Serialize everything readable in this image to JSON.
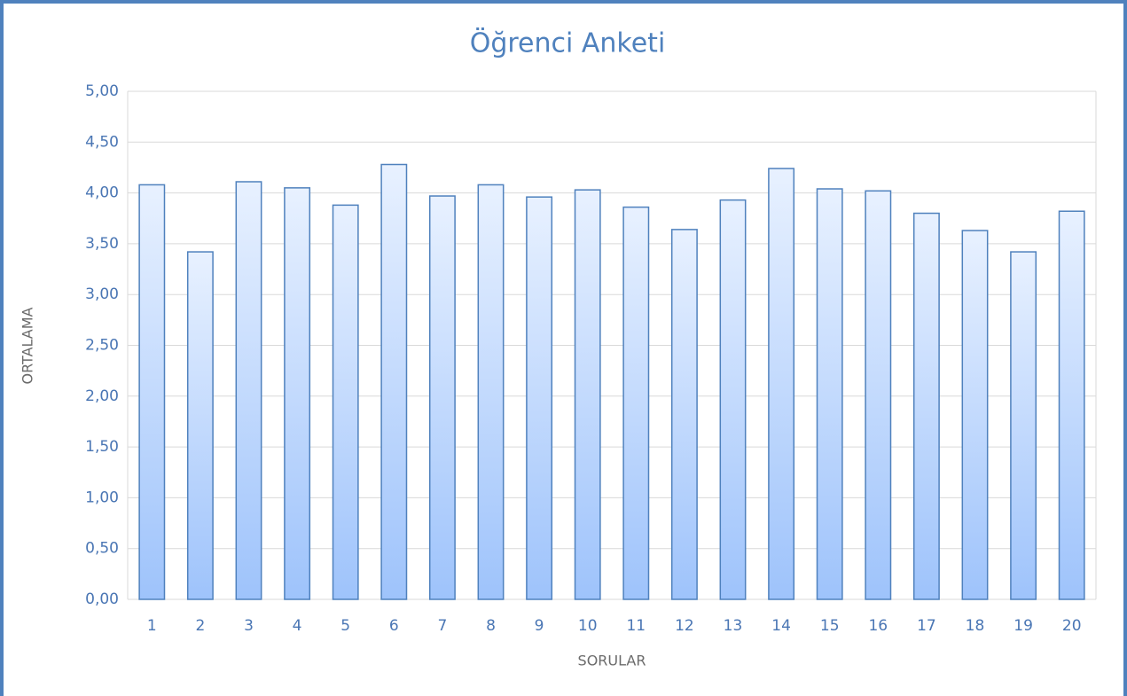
{
  "chart_data": {
    "type": "bar",
    "title": "Öğrenci Anketi",
    "x_label": "SORULAR",
    "y_label": "ORTALAMA",
    "categories": [
      "1",
      "2",
      "3",
      "4",
      "5",
      "6",
      "7",
      "8",
      "9",
      "10",
      "11",
      "12",
      "13",
      "14",
      "15",
      "16",
      "17",
      "18",
      "19",
      "20"
    ],
    "values": [
      4.08,
      3.42,
      4.11,
      4.05,
      3.88,
      4.28,
      3.97,
      4.08,
      3.96,
      4.03,
      3.86,
      3.64,
      3.93,
      4.24,
      4.04,
      4.02,
      3.8,
      3.63,
      3.42,
      3.82
    ],
    "color": "#4f81bd",
    "ylim": [
      0,
      5
    ],
    "yticks": [
      {
        "value": 0,
        "label": "0,00"
      },
      {
        "value": 0.5,
        "label": "0,50"
      },
      {
        "value": 1,
        "label": "1,00"
      },
      {
        "value": 1.5,
        "label": "1,50"
      },
      {
        "value": 2,
        "label": "2,00"
      },
      {
        "value": 2.5,
        "label": "2,50"
      },
      {
        "value": 3,
        "label": "3,00"
      },
      {
        "value": 3.5,
        "label": "3,50"
      },
      {
        "value": 4,
        "label": "4,00"
      },
      {
        "value": 4.5,
        "label": "4,50"
      },
      {
        "value": 5,
        "label": "5,00"
      }
    ],
    "grid": true
  }
}
